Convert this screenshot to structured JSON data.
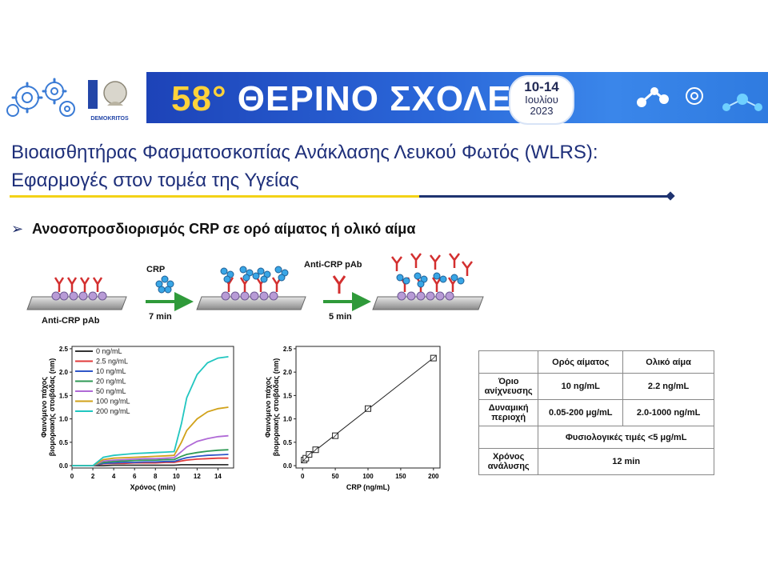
{
  "banner": {
    "number": "58",
    "degree": "°",
    "title": "ΘΕΡΙΝΟ ΣΧΟΛΕΙΟ",
    "date_days": "10-14",
    "date_month": "Ιουλίου",
    "date_year": "2023",
    "logo_text": "DEMOKRITOS",
    "accent_color": "#2a66d8"
  },
  "heading": {
    "line1": "Βιοαισθητήρας Φασματοσκοπίας Ανάκλασης Λευκού Φωτός (WLRS):",
    "line2": "Εφαρμογές στον τομέα της Υγείας"
  },
  "bullet": {
    "symbol": "➢",
    "text": "Ανοσοπροσδιορισμός CRP σε ορό αίματος ή ολικό αίμα"
  },
  "assay": {
    "surface_label": "Anti-CRP pAb",
    "step1_label": "CRP",
    "step1_time": "7 min",
    "step2_label": "Anti-CRP pAb",
    "step2_time": "5 min"
  },
  "chart_data": [
    {
      "type": "line",
      "xlabel": "Χρόνος (min)",
      "ylabel": "Φαινόμενο πάχος βιομοριακής στοιβάδας (nm)",
      "xlim": [
        0,
        15.5
      ],
      "ylim": [
        -0.05,
        2.55
      ],
      "xticks": [
        0,
        2,
        4,
        6,
        8,
        10,
        12,
        14
      ],
      "yticks": [
        0.0,
        0.5,
        1.0,
        1.5,
        2.0,
        2.5
      ],
      "legend_position": "top-left",
      "series": [
        {
          "name": "0 ng/mL",
          "color": "#333333",
          "x": [
            0,
            1,
            2,
            3,
            4,
            5,
            6,
            7,
            8,
            9,
            9.8,
            10.5,
            11,
            12,
            13,
            14,
            15
          ],
          "y": [
            0,
            0,
            0,
            0,
            0.01,
            0.01,
            0.01,
            0.01,
            0.01,
            0.01,
            0.01,
            0.02,
            0.02,
            0.02,
            0.02,
            0.02,
            0.02
          ]
        },
        {
          "name": "2.5 ng/mL",
          "color": "#e03b3b",
          "x": [
            0,
            1,
            2,
            3,
            4,
            5,
            6,
            7,
            8,
            9,
            9.8,
            10.5,
            11,
            12,
            13,
            14,
            15
          ],
          "y": [
            0,
            0,
            0,
            0.04,
            0.05,
            0.05,
            0.06,
            0.06,
            0.06,
            0.07,
            0.07,
            0.1,
            0.12,
            0.14,
            0.15,
            0.16,
            0.16
          ]
        },
        {
          "name": "10 ng/mL",
          "color": "#2f56c8",
          "x": [
            0,
            1,
            2,
            3,
            4,
            5,
            6,
            7,
            8,
            9,
            9.8,
            10.5,
            11,
            12,
            13,
            14,
            15
          ],
          "y": [
            0,
            0,
            0,
            0.05,
            0.06,
            0.07,
            0.07,
            0.08,
            0.08,
            0.09,
            0.09,
            0.14,
            0.17,
            0.2,
            0.22,
            0.23,
            0.24
          ]
        },
        {
          "name": "20 ng/mL",
          "color": "#2f9a55",
          "x": [
            0,
            1,
            2,
            3,
            4,
            5,
            6,
            7,
            8,
            9,
            9.8,
            10.5,
            11,
            12,
            13,
            14,
            15
          ],
          "y": [
            0,
            0,
            0,
            0.07,
            0.09,
            0.1,
            0.11,
            0.12,
            0.12,
            0.13,
            0.13,
            0.2,
            0.24,
            0.28,
            0.31,
            0.33,
            0.34
          ]
        },
        {
          "name": "50 ng/mL",
          "color": "#b06ad6",
          "x": [
            0,
            1,
            2,
            3,
            4,
            5,
            6,
            7,
            8,
            9,
            9.8,
            10.5,
            11,
            12,
            13,
            14,
            15
          ],
          "y": [
            0,
            0,
            0,
            0.1,
            0.12,
            0.13,
            0.14,
            0.15,
            0.15,
            0.16,
            0.17,
            0.3,
            0.4,
            0.52,
            0.58,
            0.62,
            0.64
          ]
        },
        {
          "name": "100 ng/mL",
          "color": "#d1a21a",
          "x": [
            0,
            1,
            2,
            3,
            4,
            5,
            6,
            7,
            8,
            9,
            9.8,
            10.5,
            11,
            12,
            13,
            14,
            15
          ],
          "y": [
            0,
            0,
            0,
            0.13,
            0.16,
            0.17,
            0.18,
            0.19,
            0.2,
            0.21,
            0.22,
            0.5,
            0.75,
            1.0,
            1.15,
            1.22,
            1.25
          ]
        },
        {
          "name": "200 ng/mL",
          "color": "#21c6c0",
          "x": [
            0,
            1,
            2,
            3,
            4,
            5,
            6,
            7,
            8,
            9,
            9.8,
            10.5,
            11,
            12,
            13,
            14,
            15
          ],
          "y": [
            0,
            0,
            0,
            0.18,
            0.22,
            0.24,
            0.26,
            0.27,
            0.28,
            0.29,
            0.3,
            0.9,
            1.45,
            1.95,
            2.2,
            2.3,
            2.33
          ]
        }
      ]
    },
    {
      "type": "scatter",
      "xlabel": "CRP (ng/mL)",
      "ylabel": "Φαινόμενο πάχος βιομοριακής στοιβάδας (nm)",
      "xlim": [
        -10,
        210
      ],
      "ylim": [
        -0.05,
        2.55
      ],
      "xticks": [
        0,
        50,
        100,
        150,
        200
      ],
      "yticks": [
        0.0,
        0.5,
        1.0,
        1.5,
        2.0,
        2.5
      ],
      "trendline": true,
      "series": [
        {
          "x": [
            2.5,
            5,
            10,
            20,
            50,
            100,
            200
          ],
          "y": [
            0.12,
            0.16,
            0.24,
            0.34,
            0.64,
            1.22,
            2.3
          ]
        }
      ]
    }
  ],
  "table": {
    "headers": [
      "",
      "Ορός αίματος",
      "Ολικό αίμα"
    ],
    "rows": [
      {
        "label": [
          "Όριο",
          "ανίχνευσης"
        ],
        "serum": "10 ng/mL",
        "blood": "2.2 ng/mL"
      },
      {
        "label": [
          "Δυναμική",
          "περιοχή"
        ],
        "serum": "0.05-200 μg/mL",
        "blood": "2.0-1000 ng/mL"
      },
      {
        "label": [
          "",
          ""
        ],
        "span": "Φυσιολογικές τιμές <5 μg/mL"
      },
      {
        "label": [
          "Χρόνος",
          "ανάλυσης"
        ],
        "span": "12 min"
      }
    ]
  }
}
